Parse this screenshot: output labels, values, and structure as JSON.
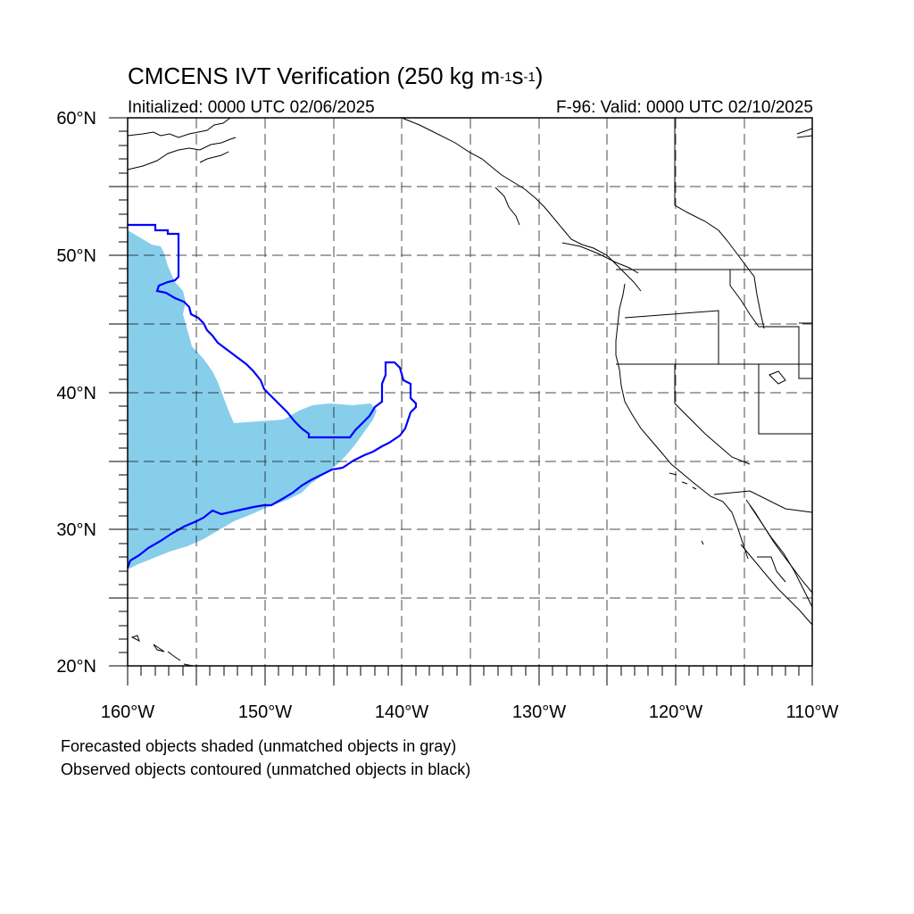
{
  "title": {
    "main": "CMCENS IVT Verification (250 kg m",
    "sup1": "-1",
    "mid": "s",
    "sup2": "-1",
    "end": ")"
  },
  "subtitle_left": "Initialized: 0000 UTC 02/06/2025",
  "subtitle_right": "F-96: Valid: 0000 UTC 02/10/2025",
  "lat_labels": [
    "60°N",
    "50°N",
    "40°N",
    "30°N",
    "20°N"
  ],
  "lon_labels": [
    "160°W",
    "150°W",
    "140°W",
    "130°W",
    "120°W",
    "110°W"
  ],
  "footnotes": {
    "line1": "Forecasted objects shaded (unmatched objects in gray)",
    "line2": "Observed objects contoured (unmatched objects in black)"
  },
  "colors": {
    "forecast_fill": "#87ceeb",
    "observed_contour": "#0000ff",
    "coastline": "#000000",
    "grid": "#000000"
  },
  "map": {
    "lon_range": [
      -160,
      -110
    ],
    "lat_range": [
      20,
      60
    ],
    "grid_lon_step": 5,
    "grid_lat_step": 5
  }
}
